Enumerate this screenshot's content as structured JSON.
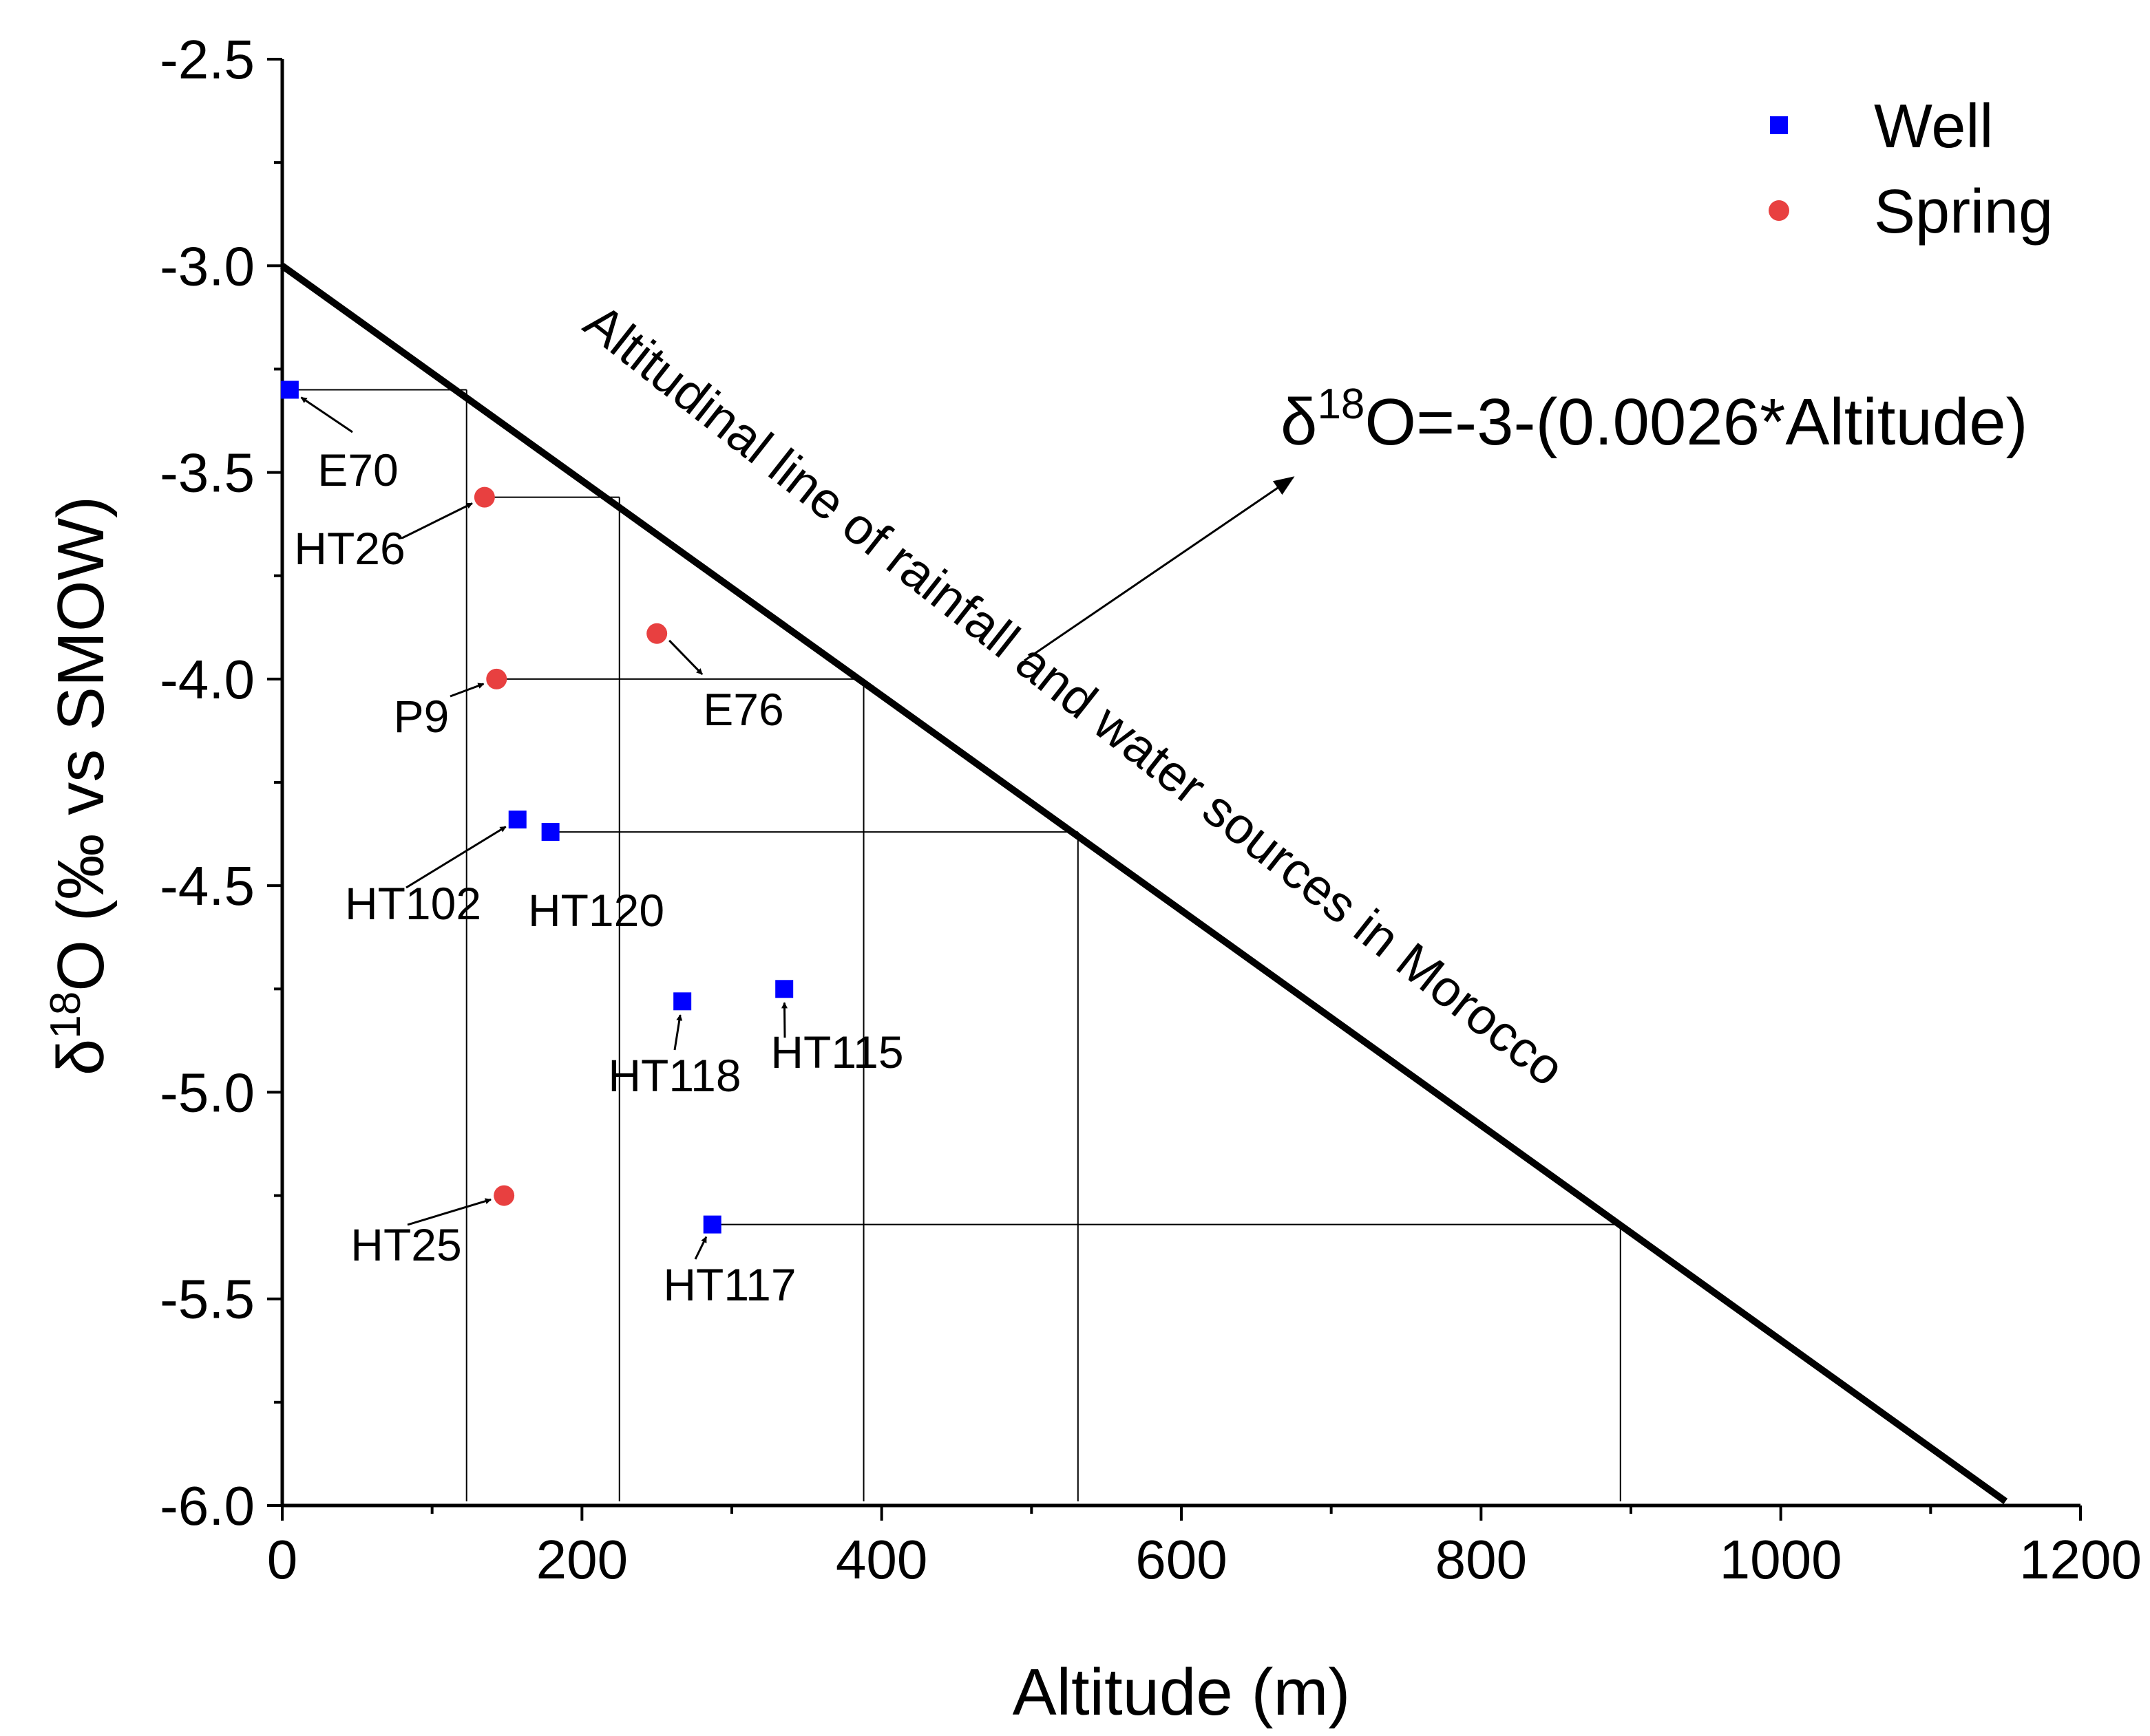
{
  "chart_data": {
    "type": "scatter",
    "title": "",
    "xlabel": "Altitude (m)",
    "ylabel": {
      "delta": "δ",
      "sup": "18",
      "rest": "O (‰ vs SMOW)"
    },
    "xlim": [
      0,
      1200
    ],
    "ylim": [
      -6.0,
      -2.5
    ],
    "x_ticks": [
      0,
      200,
      400,
      600,
      800,
      1000,
      1200
    ],
    "x_tick_labels": [
      "0",
      "200",
      "400",
      "600",
      "800",
      "1000",
      "1200"
    ],
    "y_ticks": [
      -2.5,
      -3.0,
      -3.5,
      -4.0,
      -4.5,
      -5.0,
      -5.5,
      -6.0
    ],
    "y_tick_labels": [
      "-2.5",
      "-3.0",
      "-3.5",
      "-4.0",
      "-4.5",
      "-5.0",
      "-5.5",
      "-6.0"
    ],
    "x_minor_step": 100,
    "y_minor_step": 0.25,
    "legend_position": "top-right",
    "series": [
      {
        "name": "Well",
        "marker": "square",
        "color": "#0000ff",
        "points": [
          {
            "label": "E70",
            "x": 5,
            "y": -3.3
          },
          {
            "label": "HT102",
            "x": 157,
            "y": -4.34
          },
          {
            "label": "HT120",
            "x": 179,
            "y": -4.37
          },
          {
            "label": "HT118",
            "x": 267,
            "y": -4.78
          },
          {
            "label": "HT115",
            "x": 335,
            "y": -4.75
          },
          {
            "label": "HT117",
            "x": 287,
            "y": -5.32
          }
        ]
      },
      {
        "name": "Spring",
        "marker": "circle",
        "color": "#e84040",
        "points": [
          {
            "label": "HT26",
            "x": 135,
            "y": -3.56
          },
          {
            "label": "P9",
            "x": 143,
            "y": -4.0
          },
          {
            "label": "E76",
            "x": 250,
            "y": -3.89
          },
          {
            "label": "HT25",
            "x": 148,
            "y": -5.25
          }
        ]
      }
    ],
    "regression_line": {
      "name": "Altitudinal line of rainfall and water sources in Morocco",
      "x_start": 0,
      "x_end": 1150,
      "intercept": -3.0,
      "slope": -0.0026
    },
    "equation": {
      "delta": "δ",
      "sup": "18",
      "rest": "O=-3-(0.0026*Altitude)"
    },
    "projections": [
      {
        "from_x": 5,
        "to_x": 123,
        "y": -3.3
      },
      {
        "from_x": 135,
        "to_x": 225,
        "y": -3.56
      },
      {
        "from_x": 143,
        "to_x": 388,
        "y": -4.0
      },
      {
        "from_x": 179,
        "to_x": 531,
        "y": -4.37
      },
      {
        "from_x": 287,
        "to_x": 893,
        "y": -5.32
      }
    ],
    "drop_lines": [
      {
        "x": 123,
        "y_top": -3.3
      },
      {
        "x": 225,
        "y_top": -3.56
      },
      {
        "x": 388,
        "y_top": -4.0
      },
      {
        "x": 531,
        "y_top": -4.37
      },
      {
        "x": 893,
        "y_top": -5.32
      }
    ]
  }
}
